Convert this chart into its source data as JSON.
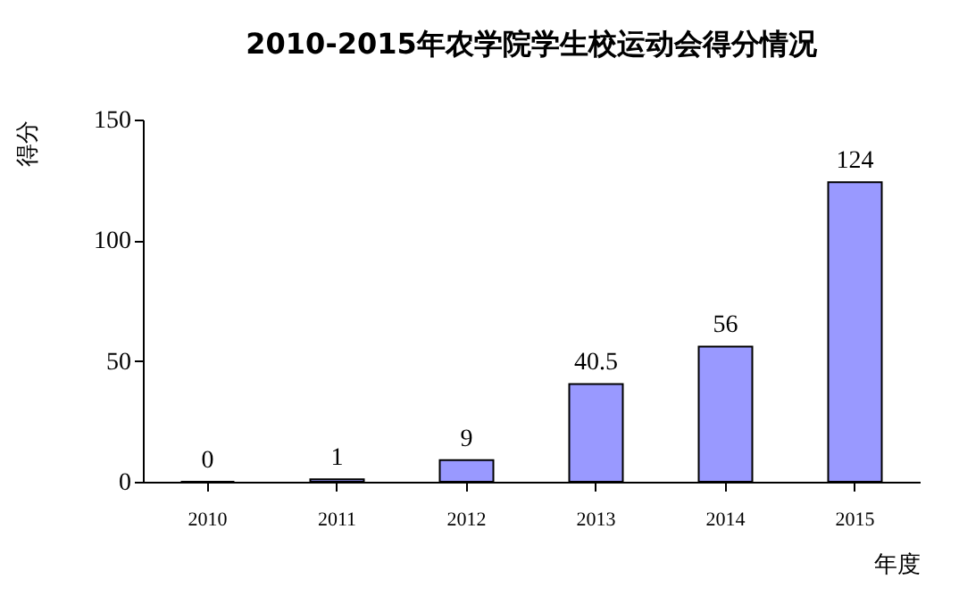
{
  "chart_data": {
    "type": "bar",
    "title": "2010-2015年农学院学生校运动会得分情况",
    "xlabel": "年度",
    "ylabel": "得分",
    "categories": [
      "2010",
      "2011",
      "2012",
      "2013",
      "2014",
      "2015"
    ],
    "values": [
      0,
      1,
      9,
      40.5,
      56,
      124
    ],
    "color": "#9999ff",
    "ylim": [
      0,
      150
    ],
    "yticks": [
      0,
      50,
      100,
      150
    ],
    "grid": false,
    "data_labels": true
  }
}
